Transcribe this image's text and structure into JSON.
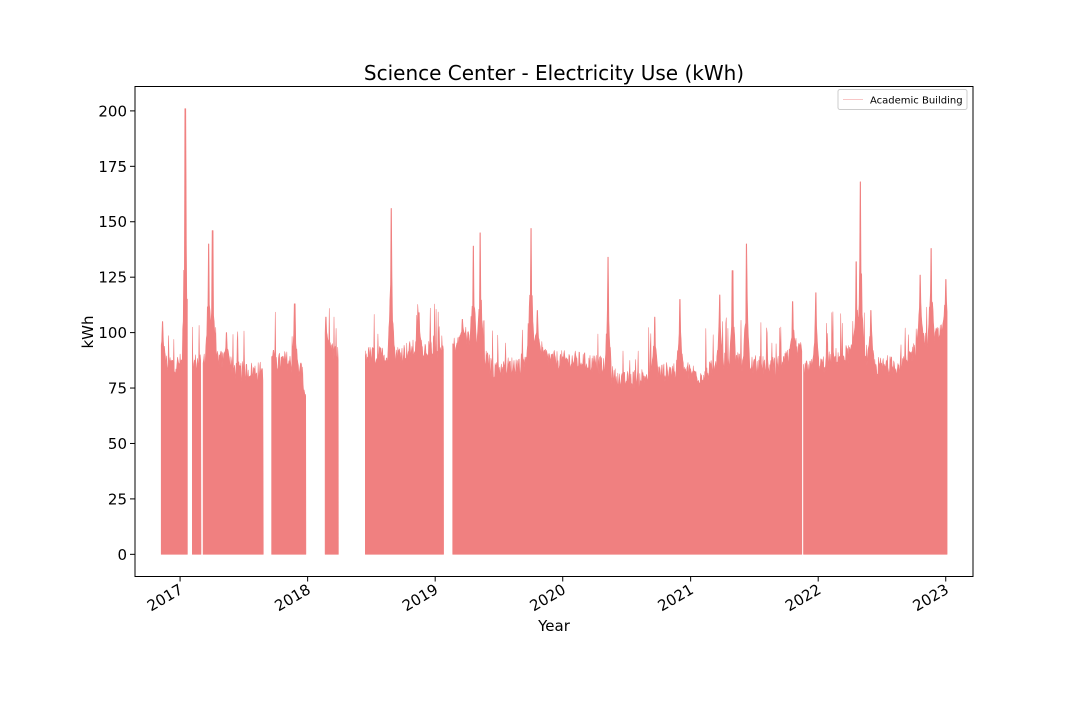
{
  "chart_data": {
    "type": "area",
    "title": "Science Center - Electricity Use (kWh)",
    "xlabel": "Year",
    "ylabel": "kWh",
    "xlim": [
      "2016-08-25",
      "2023-03-20"
    ],
    "ylim": [
      -10,
      211
    ],
    "yticks": [
      0,
      25,
      50,
      75,
      100,
      125,
      150,
      175,
      200
    ],
    "xticks": [
      "2017-01-01",
      "2018-01-01",
      "2019-01-01",
      "2020-01-01",
      "2021-01-01",
      "2022-01-01",
      "2023-01-01"
    ],
    "xtick_labels": [
      "2017",
      "2018",
      "2019",
      "2020",
      "2021",
      "2022",
      "2023"
    ],
    "grid": false,
    "legend": {
      "position": "top-right",
      "entries": [
        "Academic Building"
      ]
    },
    "series": [
      {
        "name": "Academic Building",
        "color": "#f08080",
        "segments": [
          {
            "start": "2016-11-08",
            "end": "2017-01-22"
          },
          {
            "start": "2017-02-05",
            "end": "2017-03-02"
          },
          {
            "start": "2017-03-08",
            "end": "2017-08-27"
          },
          {
            "start": "2017-09-20",
            "end": "2017-12-27"
          },
          {
            "start": "2018-02-20",
            "end": "2018-03-30"
          },
          {
            "start": "2018-06-15",
            "end": "2019-01-25"
          },
          {
            "start": "2019-02-20",
            "end": "2021-11-15"
          },
          {
            "start": "2021-11-20",
            "end": "2023-01-05"
          }
        ],
        "base_level": [
          [
            "2016-11-08",
            89
          ],
          [
            "2016-12-20",
            88
          ],
          [
            "2017-01-22",
            90
          ],
          [
            "2017-02-05",
            88
          ],
          [
            "2017-03-02",
            90
          ],
          [
            "2017-03-08",
            92
          ],
          [
            "2017-05-01",
            90
          ],
          [
            "2017-06-15",
            85
          ],
          [
            "2017-08-27",
            85
          ],
          [
            "2017-09-20",
            88
          ],
          [
            "2017-11-01",
            90
          ],
          [
            "2017-12-15",
            85
          ],
          [
            "2017-12-27",
            73
          ],
          [
            "2018-02-20",
            95
          ],
          [
            "2018-03-30",
            92
          ],
          [
            "2018-06-15",
            92
          ],
          [
            "2018-09-01",
            92
          ],
          [
            "2018-11-01",
            95
          ],
          [
            "2019-01-25",
            95
          ],
          [
            "2019-02-20",
            96
          ],
          [
            "2019-04-15",
            100
          ],
          [
            "2019-06-15",
            86
          ],
          [
            "2019-09-01",
            88
          ],
          [
            "2019-10-01",
            96
          ],
          [
            "2019-12-01",
            90
          ],
          [
            "2020-02-01",
            90
          ],
          [
            "2020-04-15",
            88
          ],
          [
            "2020-06-15",
            80
          ],
          [
            "2020-09-01",
            83
          ],
          [
            "2020-12-01",
            86
          ],
          [
            "2021-02-01",
            83
          ],
          [
            "2021-04-15",
            90
          ],
          [
            "2021-06-15",
            88
          ],
          [
            "2021-09-01",
            87
          ],
          [
            "2021-11-15",
            94
          ],
          [
            "2021-11-20",
            85
          ],
          [
            "2022-01-15",
            88
          ],
          [
            "2022-03-01",
            92
          ],
          [
            "2022-05-01",
            94
          ],
          [
            "2022-06-15",
            87
          ],
          [
            "2022-09-01",
            88
          ],
          [
            "2022-10-15",
            97
          ],
          [
            "2022-12-01",
            100
          ],
          [
            "2023-01-05",
            105
          ]
        ],
        "peaks": [
          [
            "2016-11-12",
            105
          ],
          [
            "2017-01-16",
            201
          ],
          [
            "2017-03-24",
            140
          ],
          [
            "2017-04-04",
            146
          ],
          [
            "2017-05-14",
            100
          ],
          [
            "2017-09-25",
            92
          ],
          [
            "2017-11-25",
            113
          ],
          [
            "2018-02-22",
            107
          ],
          [
            "2018-08-28",
            156
          ],
          [
            "2018-11-15",
            109
          ],
          [
            "2019-03-20",
            106
          ],
          [
            "2019-04-20",
            139
          ],
          [
            "2019-05-10",
            145
          ],
          [
            "2019-10-02",
            147
          ],
          [
            "2019-10-20",
            110
          ],
          [
            "2020-05-10",
            134
          ],
          [
            "2020-09-20",
            107
          ],
          [
            "2020-12-01",
            115
          ],
          [
            "2021-03-25",
            117
          ],
          [
            "2021-05-01",
            128
          ],
          [
            "2021-06-10",
            140
          ],
          [
            "2021-10-20",
            114
          ],
          [
            "2021-12-25",
            118
          ],
          [
            "2022-04-20",
            132
          ],
          [
            "2022-05-02",
            168
          ],
          [
            "2022-06-01",
            110
          ],
          [
            "2022-10-20",
            126
          ],
          [
            "2022-11-20",
            138
          ],
          [
            "2023-01-01",
            124
          ]
        ]
      }
    ]
  }
}
